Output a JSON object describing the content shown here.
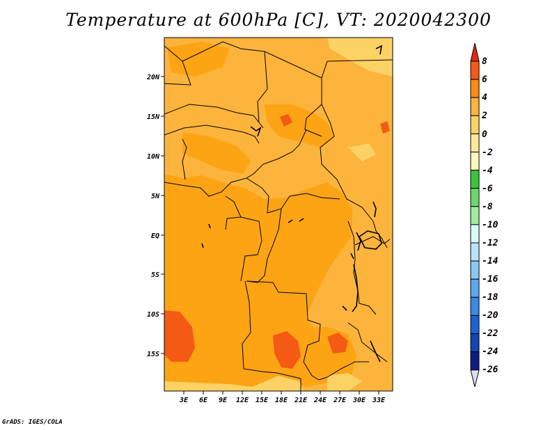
{
  "title": "Temperature at 600hPa [C], VT: 2020042300",
  "credit": "GrADS: IGES/COLA",
  "axes": {
    "lat_labels": [
      "20N",
      "15N",
      "10N",
      "5N",
      "EQ",
      "5S",
      "10S",
      "15S"
    ],
    "lon_labels": [
      "3E",
      "6E",
      "9E",
      "12E",
      "15E",
      "18E",
      "21E",
      "24E",
      "27E",
      "30E",
      "33E"
    ]
  },
  "colorbar": {
    "labels": [
      "8",
      "6",
      "4",
      "2",
      "0",
      "-2",
      "-4",
      "-6",
      "-8",
      "-10",
      "-12",
      "-14",
      "-16",
      "-18",
      "-20",
      "-22",
      "-24",
      "-26"
    ],
    "colors": [
      "#e32a14",
      "#f55a14",
      "#fa8c14",
      "#fcb43c",
      "#fcd264",
      "#fce898",
      "#fcf8bc",
      "#3cc43c",
      "#6cd86c",
      "#a0eca0",
      "#dcfcf8",
      "#b8e4fc",
      "#8cc8f4",
      "#5ca8ec",
      "#3c88e4",
      "#1c64d4",
      "#1444b4",
      "#0c1c84",
      "#dcdcfc"
    ]
  },
  "fill_colors": {
    "orange": "#fca414",
    "light_orange": "#fcb43c",
    "pale": "#fcd264",
    "red_orange": "#f55a14"
  }
}
